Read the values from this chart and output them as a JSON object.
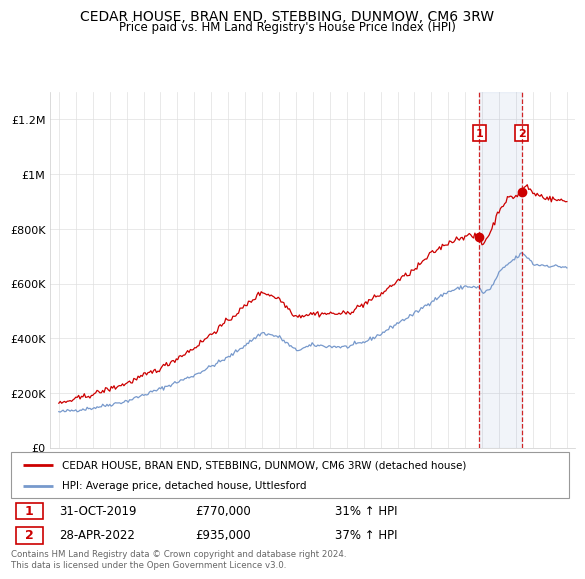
{
  "title": "CEDAR HOUSE, BRAN END, STEBBING, DUNMOW, CM6 3RW",
  "subtitle": "Price paid vs. HM Land Registry's House Price Index (HPI)",
  "title_fontsize": 10,
  "subtitle_fontsize": 8.5,
  "legend_label_red": "CEDAR HOUSE, BRAN END, STEBBING, DUNMOW, CM6 3RW (detached house)",
  "legend_label_blue": "HPI: Average price, detached house, Uttlesford",
  "footnote": "Contains HM Land Registry data © Crown copyright and database right 2024.\nThis data is licensed under the Open Government Licence v3.0.",
  "sale1_label": "1",
  "sale1_date": "31-OCT-2019",
  "sale1_price": "£770,000",
  "sale1_hpi": "31% ↑ HPI",
  "sale2_label": "2",
  "sale2_date": "28-APR-2022",
  "sale2_price": "£935,000",
  "sale2_hpi": "37% ↑ HPI",
  "red_color": "#cc0000",
  "blue_color": "#7799cc",
  "marker1_x": 2019.83,
  "marker1_y": 770000,
  "marker2_x": 2022.33,
  "marker2_y": 935000,
  "ylim_min": 0,
  "ylim_max": 1300000,
  "xlim_min": 1994.5,
  "xlim_max": 2025.5,
  "yticks": [
    0,
    200000,
    400000,
    600000,
    800000,
    1000000,
    1200000
  ],
  "ytick_labels": [
    "£0",
    "£200K",
    "£400K",
    "£600K",
    "£800K",
    "£1M",
    "£1.2M"
  ],
  "bg_color": "#f8f8f8"
}
